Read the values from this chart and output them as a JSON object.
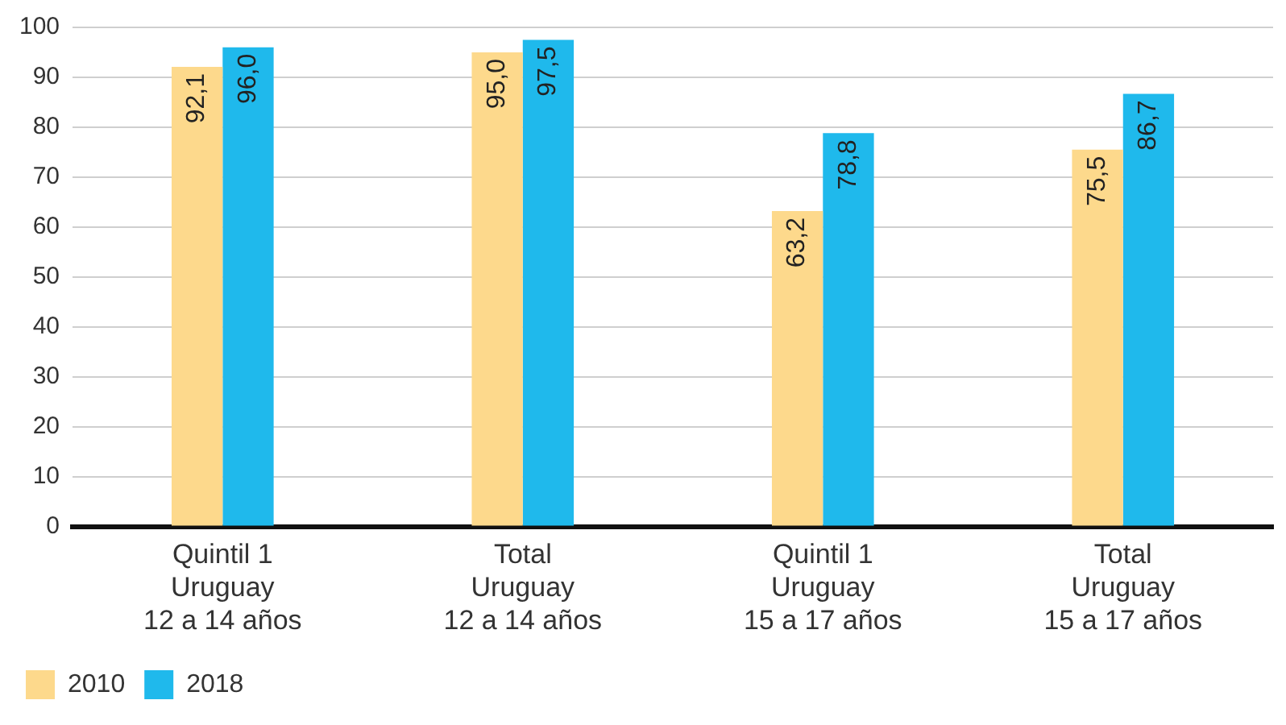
{
  "chart_data": {
    "type": "bar",
    "categories": [
      "Quintil 1\nUruguay\n12 a 14 años",
      "Total\nUruguay\n12 a 14 años",
      "Quintil 1\nUruguay\n15 a 17 años",
      "Total\nUruguay\n15 a 17 años"
    ],
    "series": [
      {
        "name": "2010",
        "color": "#fdd98c",
        "values": [
          92.1,
          95.0,
          63.2,
          75.5
        ],
        "value_labels": [
          "92,1",
          "95,0",
          "63,2",
          "75,5"
        ]
      },
      {
        "name": "2018",
        "color": "#1fb9ec",
        "values": [
          96.0,
          97.5,
          78.8,
          86.7
        ],
        "value_labels": [
          "96,0",
          "97,5",
          "78,8",
          "86,7"
        ]
      }
    ],
    "ylim": [
      0,
      100
    ],
    "yticks": [
      0,
      10,
      20,
      30,
      40,
      50,
      60,
      70,
      80,
      90,
      100
    ],
    "grid": "y",
    "legend": "bottom left"
  }
}
